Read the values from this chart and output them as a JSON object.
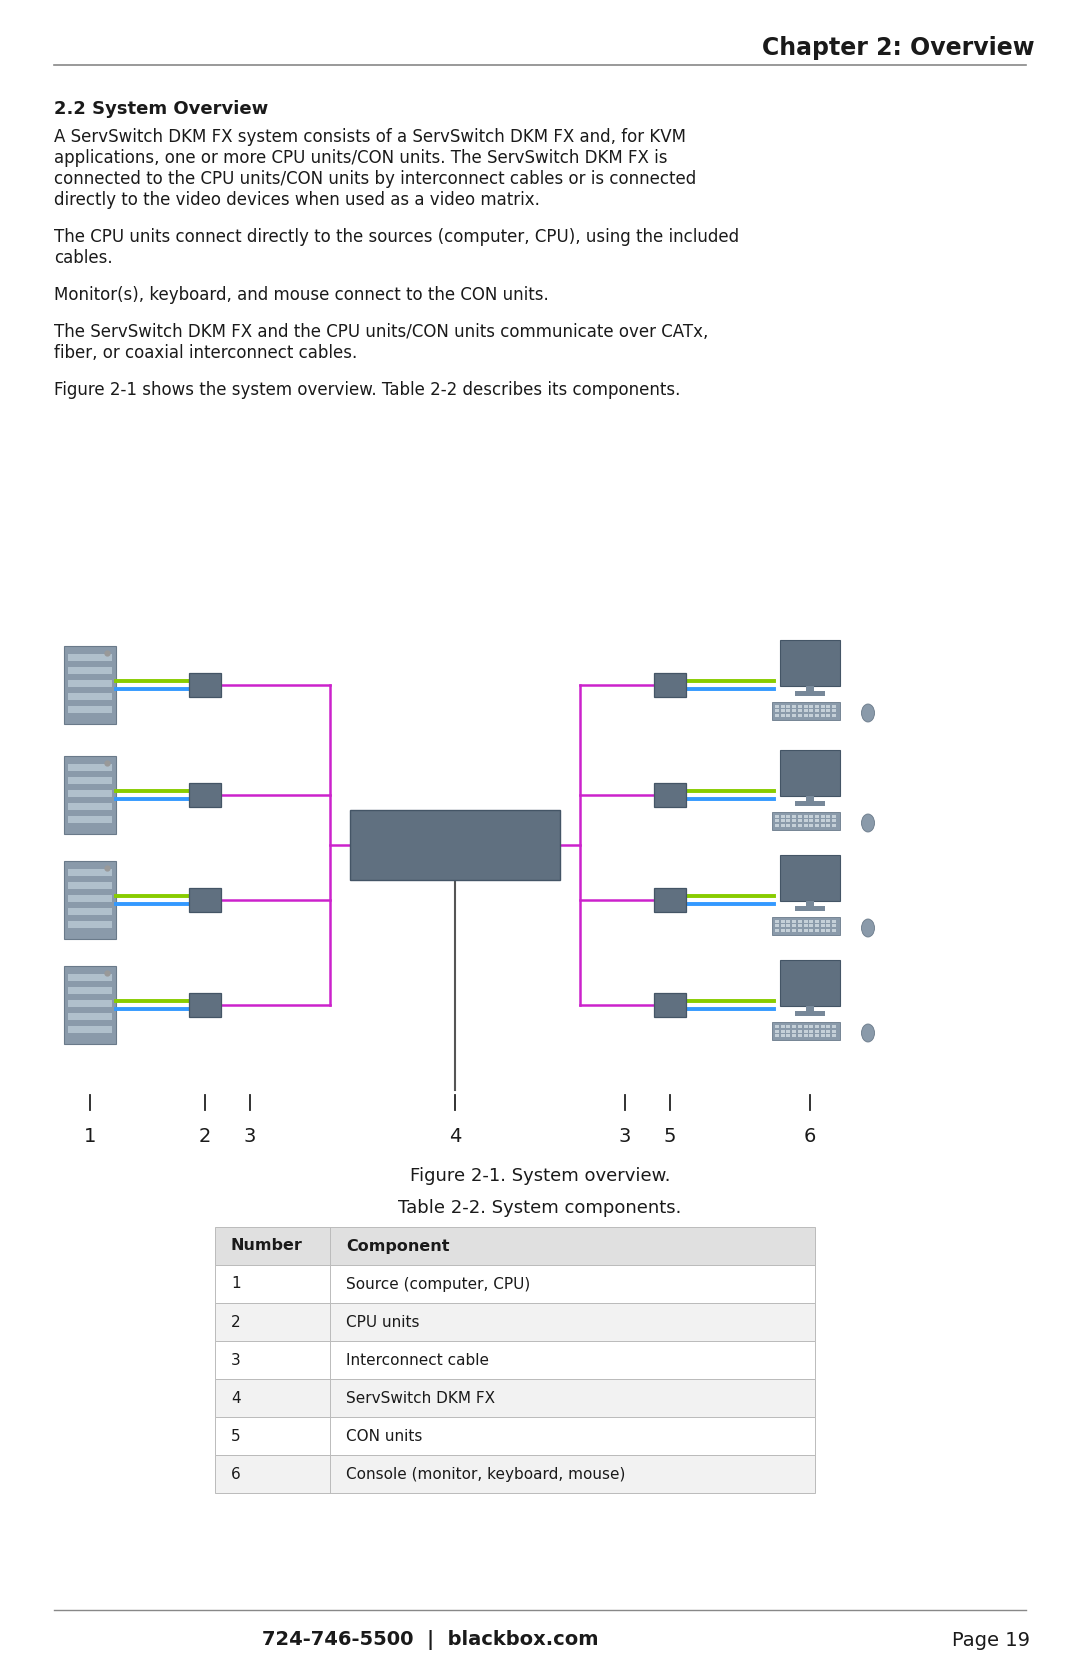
{
  "page_title": "Chapter 2: Overview",
  "section_title": "2.2 System Overview",
  "body_paragraphs": [
    "A ServSwitch DKM FX system consists of a ServSwitch DKM FX and, for KVM\napplications, one or more CPU units/CON units. The ServSwitch DKM FX is\nconnected to the CPU units/CON units by interconnect cables or is connected\ndirectly to the video devices when used as a video matrix.",
    "The CPU units connect directly to the sources (computer, CPU), using the included\ncables.",
    "Monitor(s), keyboard, and mouse connect to the CON units.",
    "The ServSwitch DKM FX and the CPU units/CON units communicate over CATx,\nfiber, or coaxial interconnect cables.",
    "Figure 2-1 shows the system overview. Table 2-2 describes its components."
  ],
  "figure_caption": "Figure 2-1. System overview.",
  "table_caption": "Table 2-2. System components.",
  "table_headers": [
    "Number",
    "Component"
  ],
  "table_rows": [
    [
      "1",
      "Source (computer, CPU)"
    ],
    [
      "2",
      "CPU units"
    ],
    [
      "3",
      "Interconnect cable"
    ],
    [
      "4",
      "ServSwitch DKM FX"
    ],
    [
      "5",
      "CON units"
    ],
    [
      "6",
      "Console (monitor, keyboard, mouse)"
    ]
  ],
  "footer_text": "724-746-5500  |  blackbox.com",
  "footer_right": "Page 19",
  "bg_color": "#ffffff",
  "text_color": "#1a1a1a",
  "header_line_color": "#888888",
  "server_color": "#7a8a96",
  "switch_box_color": "#607080",
  "cable_magenta": "#cc22cc",
  "cable_green": "#88cc00",
  "cable_blue": "#3399ff",
  "cable_gray": "#555555",
  "monitor_color": "#607080",
  "table_header_bg": "#e0e0e0",
  "table_row_alt_bg": "#f2f2f2"
}
